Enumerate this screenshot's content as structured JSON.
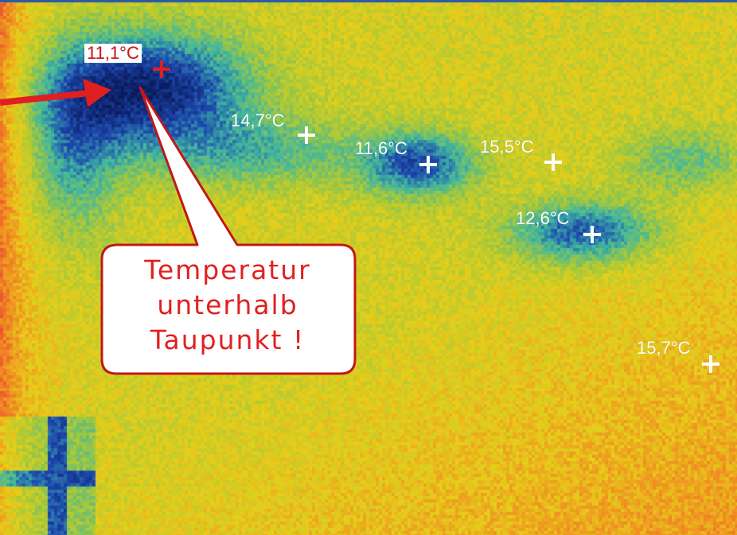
{
  "image": {
    "kind": "thermal-image",
    "palette": {
      "cold_dark": "#0a1a5a",
      "cold": "#1e4ab0",
      "cool": "#3fb6a0",
      "mid": "#a6c83a",
      "warm": "#e6cf1a",
      "hot": "#f08a22",
      "hottest": "#e8283c"
    }
  },
  "measurements": [
    {
      "label": "11,1°C",
      "marker_color": "#e02020",
      "boxed": true
    },
    {
      "label": "14,7°C",
      "marker_color": "#ffffff"
    },
    {
      "label": "11,6°C",
      "marker_color": "#ffffff"
    },
    {
      "label": "15,5°C",
      "marker_color": "#ffffff"
    },
    {
      "label": "12,6°C",
      "marker_color": "#ffffff"
    },
    {
      "label": "15,7°C",
      "marker_color": "#ffffff"
    }
  ],
  "callout": {
    "lines": [
      "Temperatur",
      "unterhalb",
      "Taupunkt !"
    ],
    "text_color": "#e02020",
    "border_color": "#c01818",
    "fill_color": "#ffffff"
  },
  "arrow": {
    "color": "#e02020",
    "icon": "arrow-right-icon"
  }
}
